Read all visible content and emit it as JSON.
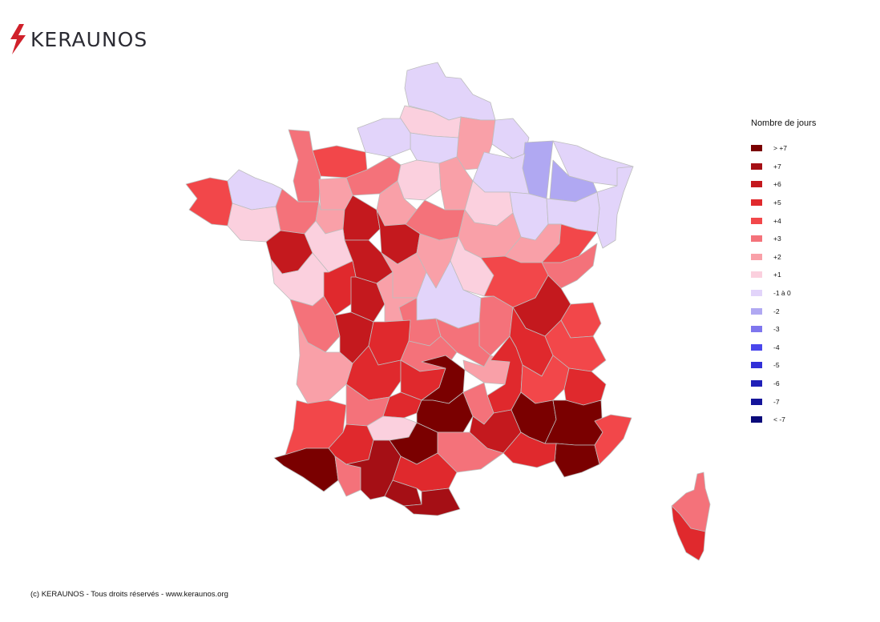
{
  "brand": {
    "name": "KERAUNOS",
    "icon": "lightning-icon",
    "accent": "#d0202a"
  },
  "legend": {
    "title": "Nombre de jours",
    "items": [
      {
        "label": "> +7",
        "color": "#7a0000"
      },
      {
        "label": "+7",
        "color": "#a50f15"
      },
      {
        "label": "+6",
        "color": "#c4191e"
      },
      {
        "label": "+5",
        "color": "#e0292d"
      },
      {
        "label": "+4",
        "color": "#f2474a"
      },
      {
        "label": "+3",
        "color": "#f4727a"
      },
      {
        "label": "+2",
        "color": "#f9a0a8"
      },
      {
        "label": "+1",
        "color": "#fbd0de"
      },
      {
        "label": "-1 à 0",
        "color": "#e2d4fa"
      },
      {
        "label": "-2",
        "color": "#b0a8f2"
      },
      {
        "label": "-3",
        "color": "#7e76ee"
      },
      {
        "label": "-4",
        "color": "#4a46ec"
      },
      {
        "label": "-5",
        "color": "#3230d8"
      },
      {
        "label": "-6",
        "color": "#2020b8"
      },
      {
        "label": "-7",
        "color": "#14149a"
      },
      {
        "label": "< -7",
        "color": "#0a0a7a"
      }
    ]
  },
  "footer": {
    "copyright": "(c) KERAUNOS - Tous droits réservés - www.keraunos.org"
  }
}
